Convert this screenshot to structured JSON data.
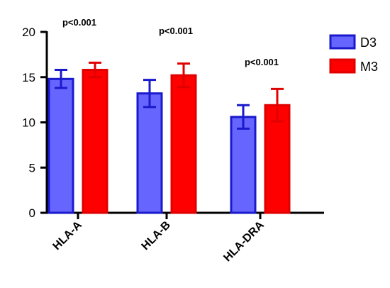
{
  "chart_data": {
    "type": "bar",
    "title": "",
    "xlabel": "",
    "ylabel": "",
    "ylim": [
      0,
      20
    ],
    "yticks": [
      "0",
      "5",
      "10",
      "15",
      "20"
    ],
    "categories": [
      "HLA-A",
      "HLA-B",
      "HLA-DRA"
    ],
    "series": [
      {
        "name": "D3",
        "values": [
          14.8,
          13.2,
          10.6
        ],
        "errors": [
          1.0,
          1.5,
          1.3
        ],
        "color": "#6666ff",
        "edge": "#1a1acc"
      },
      {
        "name": "M3",
        "values": [
          15.8,
          15.2,
          11.9
        ],
        "errors": [
          0.8,
          1.3,
          1.8
        ],
        "color": "#ff0000",
        "edge": "#e00000"
      }
    ],
    "annotations": [
      "p<0.001",
      "p<0.001",
      "p<0.001"
    ],
    "legend_position": "top-right",
    "grid": false
  }
}
